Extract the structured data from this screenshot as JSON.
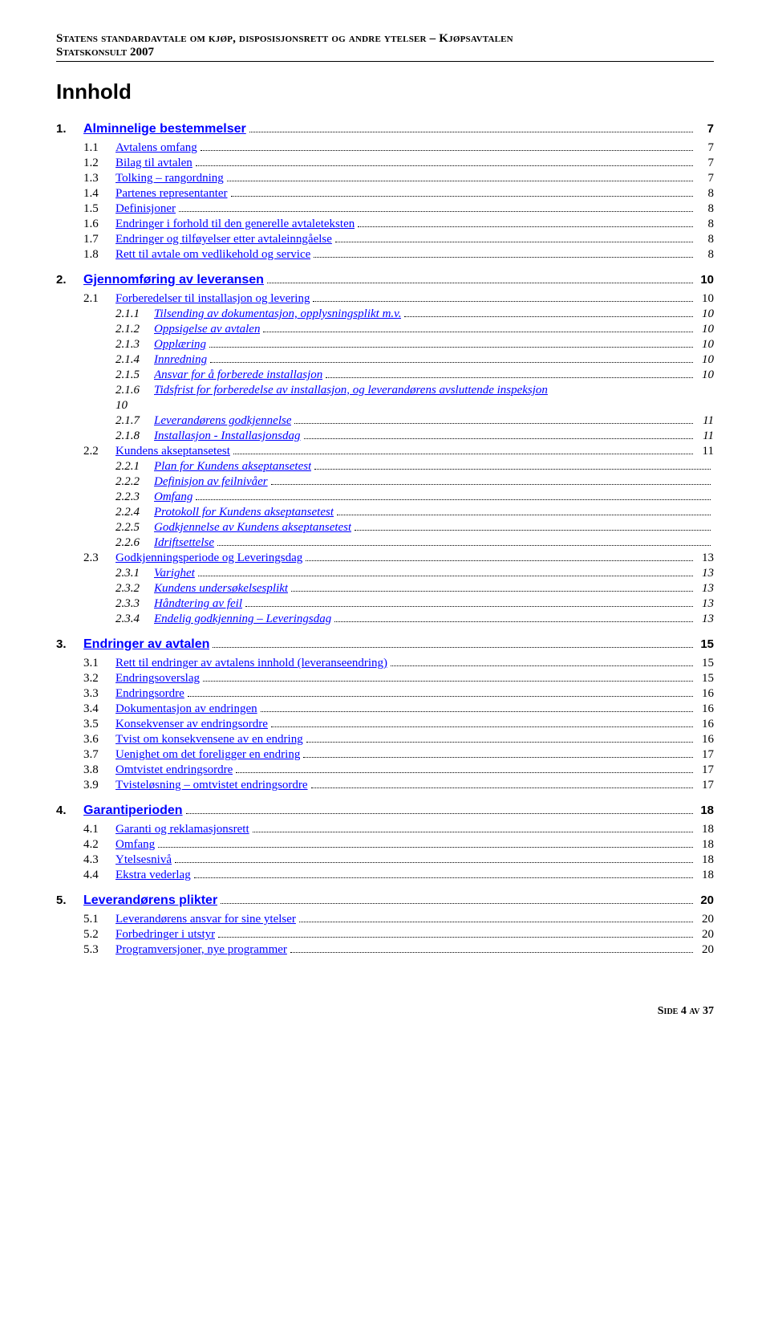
{
  "header": {
    "line1_a": "Statens standardavtale om kjøp, disposisjonsrett og andre ytelser",
    "line1_b": " – Kjøpsavtalen",
    "line2": "Statskonsult 2007"
  },
  "toc_title": "Innhold",
  "footer": "Side 4 av 37",
  "toc": [
    {
      "level": 1,
      "num": "1.",
      "text": "Alminnelige bestemmelser",
      "page": "7"
    },
    {
      "level": 2,
      "num": "1.1",
      "text": "Avtalens omfang",
      "page": "7"
    },
    {
      "level": 2,
      "num": "1.2",
      "text": "Bilag til avtalen",
      "page": "7"
    },
    {
      "level": 2,
      "num": "1.3",
      "text": "Tolking – rangordning",
      "page": "7"
    },
    {
      "level": 2,
      "num": "1.4",
      "text": "Partenes representanter",
      "page": "8"
    },
    {
      "level": 2,
      "num": "1.5",
      "text": "Definisjoner",
      "page": "8"
    },
    {
      "level": 2,
      "num": "1.6",
      "text": "Endringer i forhold til den generelle avtaleteksten",
      "page": "8"
    },
    {
      "level": 2,
      "num": "1.7",
      "text": "Endringer og tilføyelser etter avtaleinngåelse",
      "page": "8"
    },
    {
      "level": 2,
      "num": "1.8",
      "text": "Rett til avtale om vedlikehold og service",
      "page": "8"
    },
    {
      "level": 1,
      "num": "2.",
      "text": "Gjennomføring av leveransen",
      "page": "10"
    },
    {
      "level": 2,
      "num": "2.1",
      "text": "Forberedelser til installasjon og levering",
      "page": "10"
    },
    {
      "level": 3,
      "num": "2.1.1",
      "text": "Tilsending av dokumentasjon, opplysningsplikt m.v.",
      "page": "10"
    },
    {
      "level": 3,
      "num": "2.1.2",
      "text": "Oppsigelse av avtalen",
      "page": "10"
    },
    {
      "level": 3,
      "num": "2.1.3",
      "text": "Opplæring",
      "page": "10"
    },
    {
      "level": 3,
      "num": "2.1.4",
      "text": "Innredning",
      "page": "10"
    },
    {
      "level": 3,
      "num": "2.1.5",
      "text": "Ansvar for å forberede installasjon",
      "page": "10"
    },
    {
      "level": 3,
      "num": "2.1.6",
      "text": "Tidsfrist for forberedelse av installasjon, og leverandørens avsluttende inspeksjon",
      "page": "10",
      "wrap": true
    },
    {
      "level": 3,
      "num": "2.1.7",
      "text": "Leverandørens godkjennelse",
      "page": "11"
    },
    {
      "level": 3,
      "num": "2.1.8",
      "text": "Installasjon - Installasjonsdag",
      "page": "11"
    },
    {
      "level": 2,
      "num": "2.2",
      "text": "Kundens akseptansetest",
      "page": "11"
    },
    {
      "level": 3,
      "num": "2.2.1",
      "text": "Plan for Kundens akseptansetest",
      "page": "",
      "noleader": true
    },
    {
      "level": 3,
      "num": "2.2.2",
      "text": "Definisjon av feilnivåer",
      "page": "",
      "noleader": true
    },
    {
      "level": 3,
      "num": "2.2.3",
      "text": "Omfang",
      "page": "",
      "noleader": true
    },
    {
      "level": 3,
      "num": "2.2.4",
      "text": "Protokoll for Kundens akseptansetest",
      "page": "",
      "noleader": true
    },
    {
      "level": 3,
      "num": "2.2.5",
      "text": "Godkjennelse av Kundens akseptansetest",
      "page": "",
      "noleader": true
    },
    {
      "level": 3,
      "num": "2.2.6",
      "text": "Idriftsettelse",
      "page": "",
      "noleader": true
    },
    {
      "level": 2,
      "num": "2.3",
      "text": "Godkjenningsperiode og Leveringsdag",
      "page": "13"
    },
    {
      "level": 3,
      "num": "2.3.1",
      "text": "Varighet",
      "page": "13"
    },
    {
      "level": 3,
      "num": "2.3.2",
      "text": "Kundens undersøkelsesplikt",
      "page": "13"
    },
    {
      "level": 3,
      "num": "2.3.3",
      "text": "Håndtering av feil",
      "page": "13"
    },
    {
      "level": 3,
      "num": "2.3.4",
      "text": "Endelig godkjenning – Leveringsdag",
      "page": "13"
    },
    {
      "level": 1,
      "num": "3.",
      "text": "Endringer av avtalen",
      "page": "15"
    },
    {
      "level": 2,
      "num": "3.1",
      "text": "Rett til endringer av avtalens innhold (leveranseendring)",
      "page": "15"
    },
    {
      "level": 2,
      "num": "3.2",
      "text": "Endringsoverslag",
      "page": "15"
    },
    {
      "level": 2,
      "num": "3.3",
      "text": "Endringsordre",
      "page": "16"
    },
    {
      "level": 2,
      "num": "3.4",
      "text": "Dokumentasjon av endringen",
      "page": "16"
    },
    {
      "level": 2,
      "num": "3.5",
      "text": "Konsekvenser av endringsordre",
      "page": "16"
    },
    {
      "level": 2,
      "num": "3.6",
      "text": "Tvist om konsekvensene av en endring",
      "page": "16"
    },
    {
      "level": 2,
      "num": "3.7",
      "text": "Uenighet om det foreligger en endring",
      "page": "17"
    },
    {
      "level": 2,
      "num": "3.8",
      "text": "Omtvistet endringsordre",
      "page": "17"
    },
    {
      "level": 2,
      "num": "3.9",
      "text": "Tvisteløsning – omtvistet endringsordre",
      "page": "17"
    },
    {
      "level": 1,
      "num": "4.",
      "text": "Garantiperioden",
      "page": "18"
    },
    {
      "level": 2,
      "num": "4.1",
      "text": "Garanti og reklamasjonsrett",
      "page": "18"
    },
    {
      "level": 2,
      "num": "4.2",
      "text": "Omfang",
      "page": "18"
    },
    {
      "level": 2,
      "num": "4.3",
      "text": "Ytelsesnivå",
      "page": "18"
    },
    {
      "level": 2,
      "num": "4.4",
      "text": "Ekstra vederlag",
      "page": "18"
    },
    {
      "level": 1,
      "num": "5.",
      "text": "Leverandørens plikter",
      "page": "20"
    },
    {
      "level": 2,
      "num": "5.1",
      "text": "Leverandørens ansvar for sine ytelser",
      "page": "20"
    },
    {
      "level": 2,
      "num": "5.2",
      "text": "Forbedringer i utstyr",
      "page": "20"
    },
    {
      "level": 2,
      "num": "5.3",
      "text": "Programversjoner, nye programmer",
      "page": "20"
    }
  ]
}
